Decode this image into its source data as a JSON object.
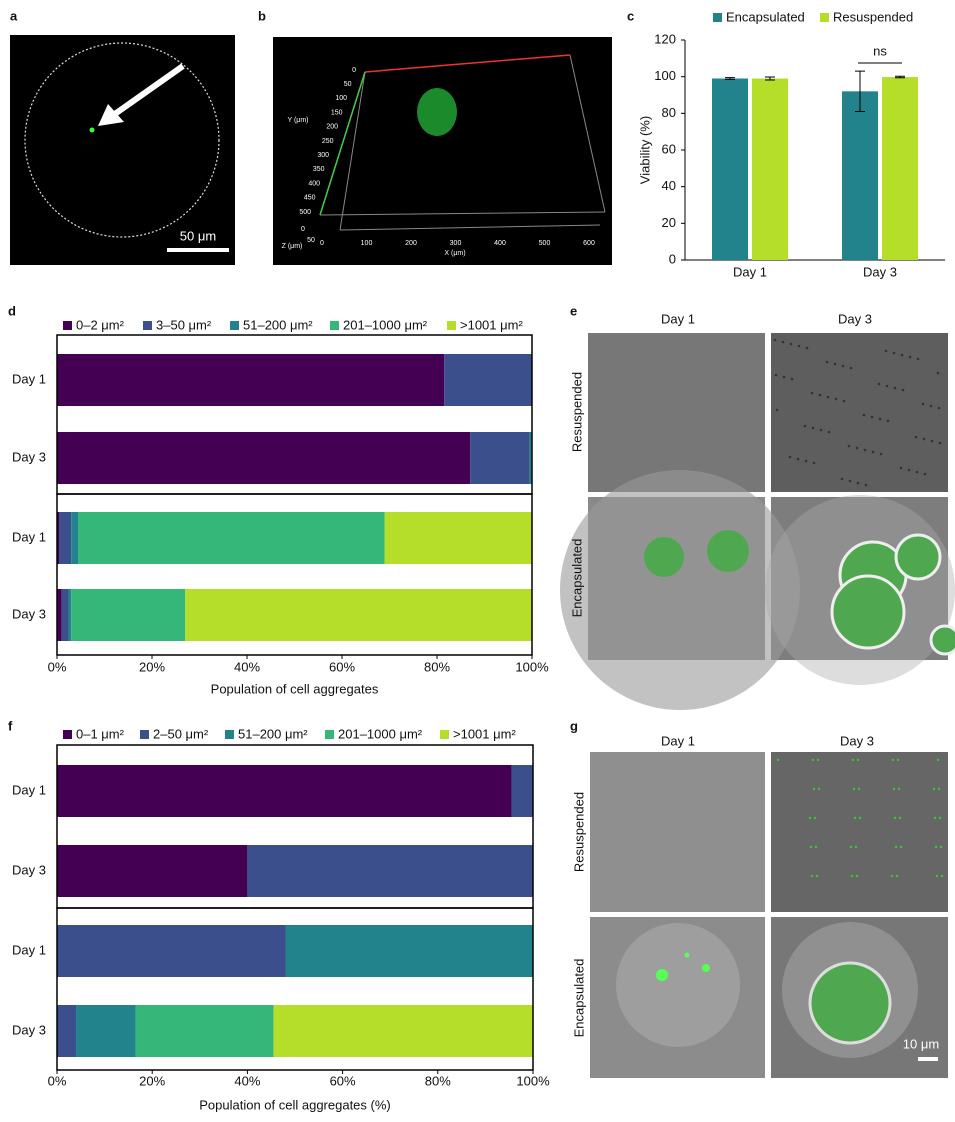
{
  "panel_labels": [
    "a",
    "b",
    "c",
    "d",
    "e",
    "f",
    "g"
  ],
  "panel_a": {
    "scale_bar": "50 μm"
  },
  "panel_b": {
    "y_label": "Y (μm)",
    "y_ticks": [
      0,
      50,
      100,
      150,
      200,
      250,
      300,
      350,
      400,
      450,
      500
    ],
    "z_label": "Z (μm)",
    "z_ticks": [
      0,
      50
    ],
    "x_label": "X (μm)",
    "x_ticks": [
      0,
      100,
      200,
      300,
      400,
      500,
      600
    ]
  },
  "panel_e": {
    "columns": [
      "Day 1",
      "Day 3"
    ],
    "rows": [
      "Resuspended",
      "Encapsulated"
    ]
  },
  "panel_g": {
    "columns": [
      "Day 1",
      "Day 3"
    ],
    "rows": [
      "Resuspended",
      "Encapsulated"
    ],
    "scale_bar": "10 μm"
  },
  "chart_data": [
    {
      "type": "bar",
      "categories": [
        "Day 1",
        "Day 3"
      ],
      "series": [
        {
          "name": "Encapsulated",
          "color": "#23838c",
          "values": [
            99,
            92
          ],
          "errors": [
            0.5,
            11
          ]
        },
        {
          "name": "Resuspended",
          "color": "#b5de2b",
          "values": [
            99,
            99.8
          ],
          "errors": [
            0.8,
            0.4
          ]
        }
      ],
      "ylabel": "Viability (%)",
      "ylim": [
        0,
        120
      ],
      "yticks": [
        0,
        20,
        40,
        60,
        80,
        100,
        120
      ],
      "annotation": "ns",
      "legend": "top"
    },
    {
      "type": "barh",
      "stacked": true,
      "categories": [
        "Day 1",
        "Day 3",
        "Day 1",
        "Day 3"
      ],
      "series": [
        {
          "name": "0–2 μm²",
          "color": "#440154",
          "values": [
            81.5,
            87,
            0.5,
            1
          ]
        },
        {
          "name": "3–50 μm²",
          "color": "#3b4f8c",
          "values": [
            18.5,
            12.5,
            2.5,
            1.5
          ]
        },
        {
          "name": "51–200 μm²",
          "color": "#23838c",
          "values": [
            0,
            0.5,
            1.5,
            0.5
          ]
        },
        {
          "name": "201–1000 μm²",
          "color": "#35b779",
          "values": [
            0,
            0,
            64.5,
            24
          ]
        },
        {
          "name": ">1001 μm²",
          "color": "#b5de2b",
          "values": [
            0,
            0,
            31,
            73
          ]
        }
      ],
      "xlabel": "Population of cell aggregates",
      "xlim": [
        0,
        100
      ],
      "xticks": [
        {
          "value": 0,
          "label": "0%"
        },
        {
          "value": 20,
          "label": "20%"
        },
        {
          "value": 40,
          "label": "40%"
        },
        {
          "value": 60,
          "label": "60%"
        },
        {
          "value": 80,
          "label": "80%"
        },
        {
          "value": 100,
          "label": "100%"
        }
      ],
      "legend": "top"
    },
    {
      "type": "barh",
      "stacked": true,
      "categories": [
        "Day 1",
        "Day 3",
        "Day 1",
        "Day 3"
      ],
      "series": [
        {
          "name": "0–1 μm²",
          "color": "#440154",
          "values": [
            95.5,
            40,
            0,
            0
          ]
        },
        {
          "name": "2–50 μm²",
          "color": "#3b4f8c",
          "values": [
            4.5,
            60,
            48,
            4
          ]
        },
        {
          "name": "51–200 μm²",
          "color": "#23838c",
          "values": [
            0,
            0,
            52,
            12.5
          ]
        },
        {
          "name": "201–1000 μm²",
          "color": "#35b779",
          "values": [
            0,
            0,
            0,
            29
          ]
        },
        {
          "name": ">1001 μm²",
          "color": "#b5de2b",
          "values": [
            0,
            0,
            0,
            54.5
          ]
        }
      ],
      "xlabel": "Population of cell aggregates (%)",
      "xlim": [
        0,
        100
      ],
      "xticks": [
        {
          "value": 0,
          "label": "0%"
        },
        {
          "value": 20,
          "label": "20%"
        },
        {
          "value": 40,
          "label": "40%"
        },
        {
          "value": 60,
          "label": "60%"
        },
        {
          "value": 80,
          "label": "80%"
        },
        {
          "value": 100,
          "label": "100%"
        }
      ],
      "legend": "top"
    }
  ]
}
